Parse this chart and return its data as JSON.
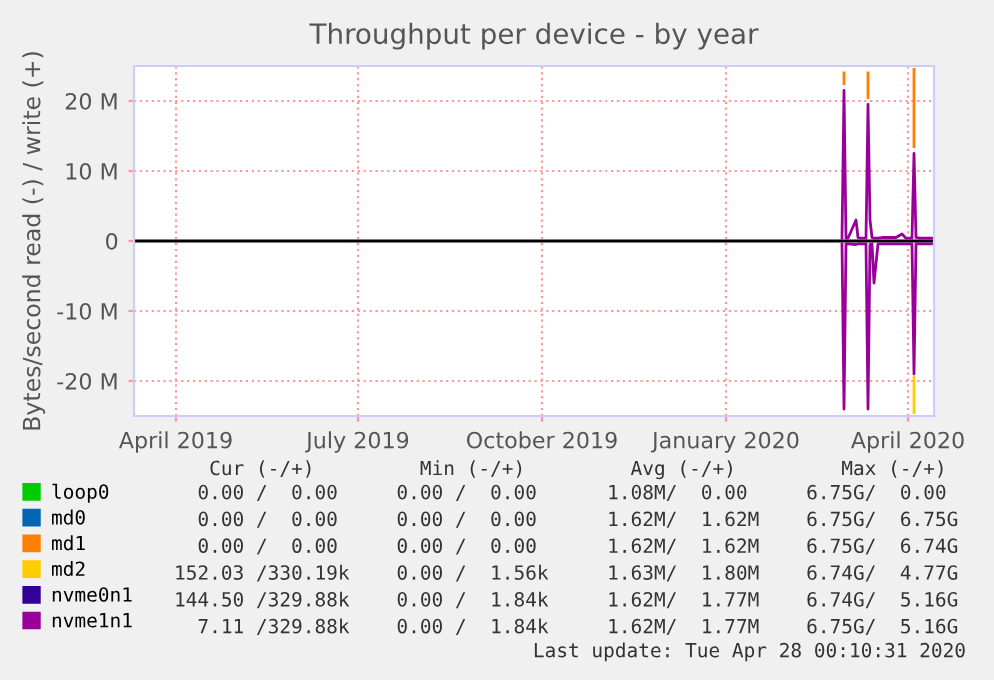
{
  "chart_data": {
    "type": "line",
    "title": "Throughput per device - by year",
    "ylabel": "Bytes/second read (-) / write (+)",
    "x": [
      "2020-03-14",
      "2020-03-15",
      "2020-03-16",
      "2020-03-17",
      "2020-03-21",
      "2020-03-22",
      "2020-03-23",
      "2020-03-26",
      "2020-03-27",
      "2020-03-28",
      "2020-03-29",
      "2020-03-30",
      "2020-04-01",
      "2020-04-03",
      "2020-04-10",
      "2020-04-13",
      "2020-04-15",
      "2020-04-18",
      "2020-04-19",
      "2020-04-20",
      "2020-04-22",
      "2020-04-28"
    ],
    "xlim": [
      "2019-03-26",
      "2020-04-29"
    ],
    "xticks": [
      {
        "value": "2019-04-16",
        "label": "April 2019"
      },
      {
        "value": "2019-07-16",
        "label": "July 2019"
      },
      {
        "value": "2019-10-16",
        "label": "October 2019"
      },
      {
        "value": "2020-01-16",
        "label": "January 2020"
      },
      {
        "value": "2020-04-16",
        "label": "April 2020"
      }
    ],
    "ylim": [
      -25000000,
      25000000
    ],
    "yticks": [
      {
        "value": -20000000,
        "label": "-20 M"
      },
      {
        "value": -10000000,
        "label": "-10 M"
      },
      0,
      {
        "value": 10000000,
        "label": "10 M"
      },
      {
        "value": 20000000,
        "label": "20 M"
      }
    ],
    "grid": true,
    "legend": "bottom left",
    "ref_lines": [
      {
        "axis": "y",
        "value": 0,
        "color": "#000000"
      }
    ],
    "series": [
      {
        "name": "loop0",
        "color": "#00cc00",
        "values": [
          null,
          null,
          null,
          null,
          null,
          null,
          null,
          null,
          null,
          null,
          null,
          null,
          null,
          null,
          null,
          null,
          null,
          null,
          null,
          null,
          null,
          null
        ]
      },
      {
        "name": "md0",
        "color": "#0066b3",
        "values": [
          null,
          null,
          null,
          null,
          null,
          null,
          null,
          null,
          null,
          null,
          null,
          null,
          null,
          null,
          null,
          null,
          null,
          null,
          null,
          null,
          null,
          null
        ]
      },
      {
        "name": "md1",
        "color": "#ff8000",
        "x": [
          "2020-03-15",
          "2020-03-15",
          "2020-03-21",
          "2020-03-27",
          "2020-03-27",
          "2020-04-10",
          "2020-04-19",
          "2020-04-19"
        ],
        "values": [
          22500000,
          24000000,
          null,
          20500000,
          24000000,
          null,
          13500000,
          24500000
        ]
      },
      {
        "name": "md2",
        "color": "#ffcc00",
        "x": [
          "2020-04-19",
          "2020-04-19"
        ],
        "values": [
          -19500000,
          -24500000
        ]
      },
      {
        "name": "nvme0n1",
        "color": "#330099",
        "values": [
          null,
          null,
          null,
          null,
          null,
          null,
          null,
          null,
          null,
          null,
          null,
          null,
          null,
          null,
          null,
          null,
          null,
          null,
          null,
          null,
          null,
          null
        ]
      },
      {
        "name": "nvme1n1",
        "color": "#990099",
        "values": [
          400000,
          21500000,
          400000,
          400000,
          3000000,
          500000,
          400000,
          400000,
          19500000,
          3000000,
          500000,
          400000,
          400000,
          500000,
          500000,
          1000000,
          400000,
          400000,
          12500000,
          500000,
          400000,
          400000
        ]
      },
      {
        "color": "#990099",
        "values": [
          -400000,
          -24000000,
          -400000,
          -400000,
          -500000,
          -400000,
          -400000,
          -400000,
          -24000000,
          -500000,
          -400000,
          -6000000,
          -400000,
          -400000,
          -400000,
          -400000,
          -400000,
          -400000,
          -19000000,
          -400000,
          -400000,
          -400000
        ]
      }
    ],
    "annotations": [
      "   Cur (-/+)         Min (-/+)         Avg (-/+)         Max (-/+)",
      "  0.00 /  0.00     0.00 /  0.00      1.08M/  0.00     6.75G/  0.00",
      "  0.00 /  0.00     0.00 /  0.00      1.62M/  1.62M    6.75G/  6.75G",
      "  0.00 /  0.00     0.00 /  0.00      1.62M/  1.62M    6.75G/  6.74G",
      "152.03 /330.19k    0.00 /  1.56k     1.63M/  1.80M    6.74G/  4.77G",
      "144.50 /329.88k    0.00 /  1.84k     1.62M/  1.77M    6.74G/  5.16G",
      "  7.11 /329.88k    0.00 /  1.84k     1.62M/  1.77M    6.75G/  5.16G",
      "Last update: Tue Apr 28 00:10:31 2020"
    ]
  }
}
